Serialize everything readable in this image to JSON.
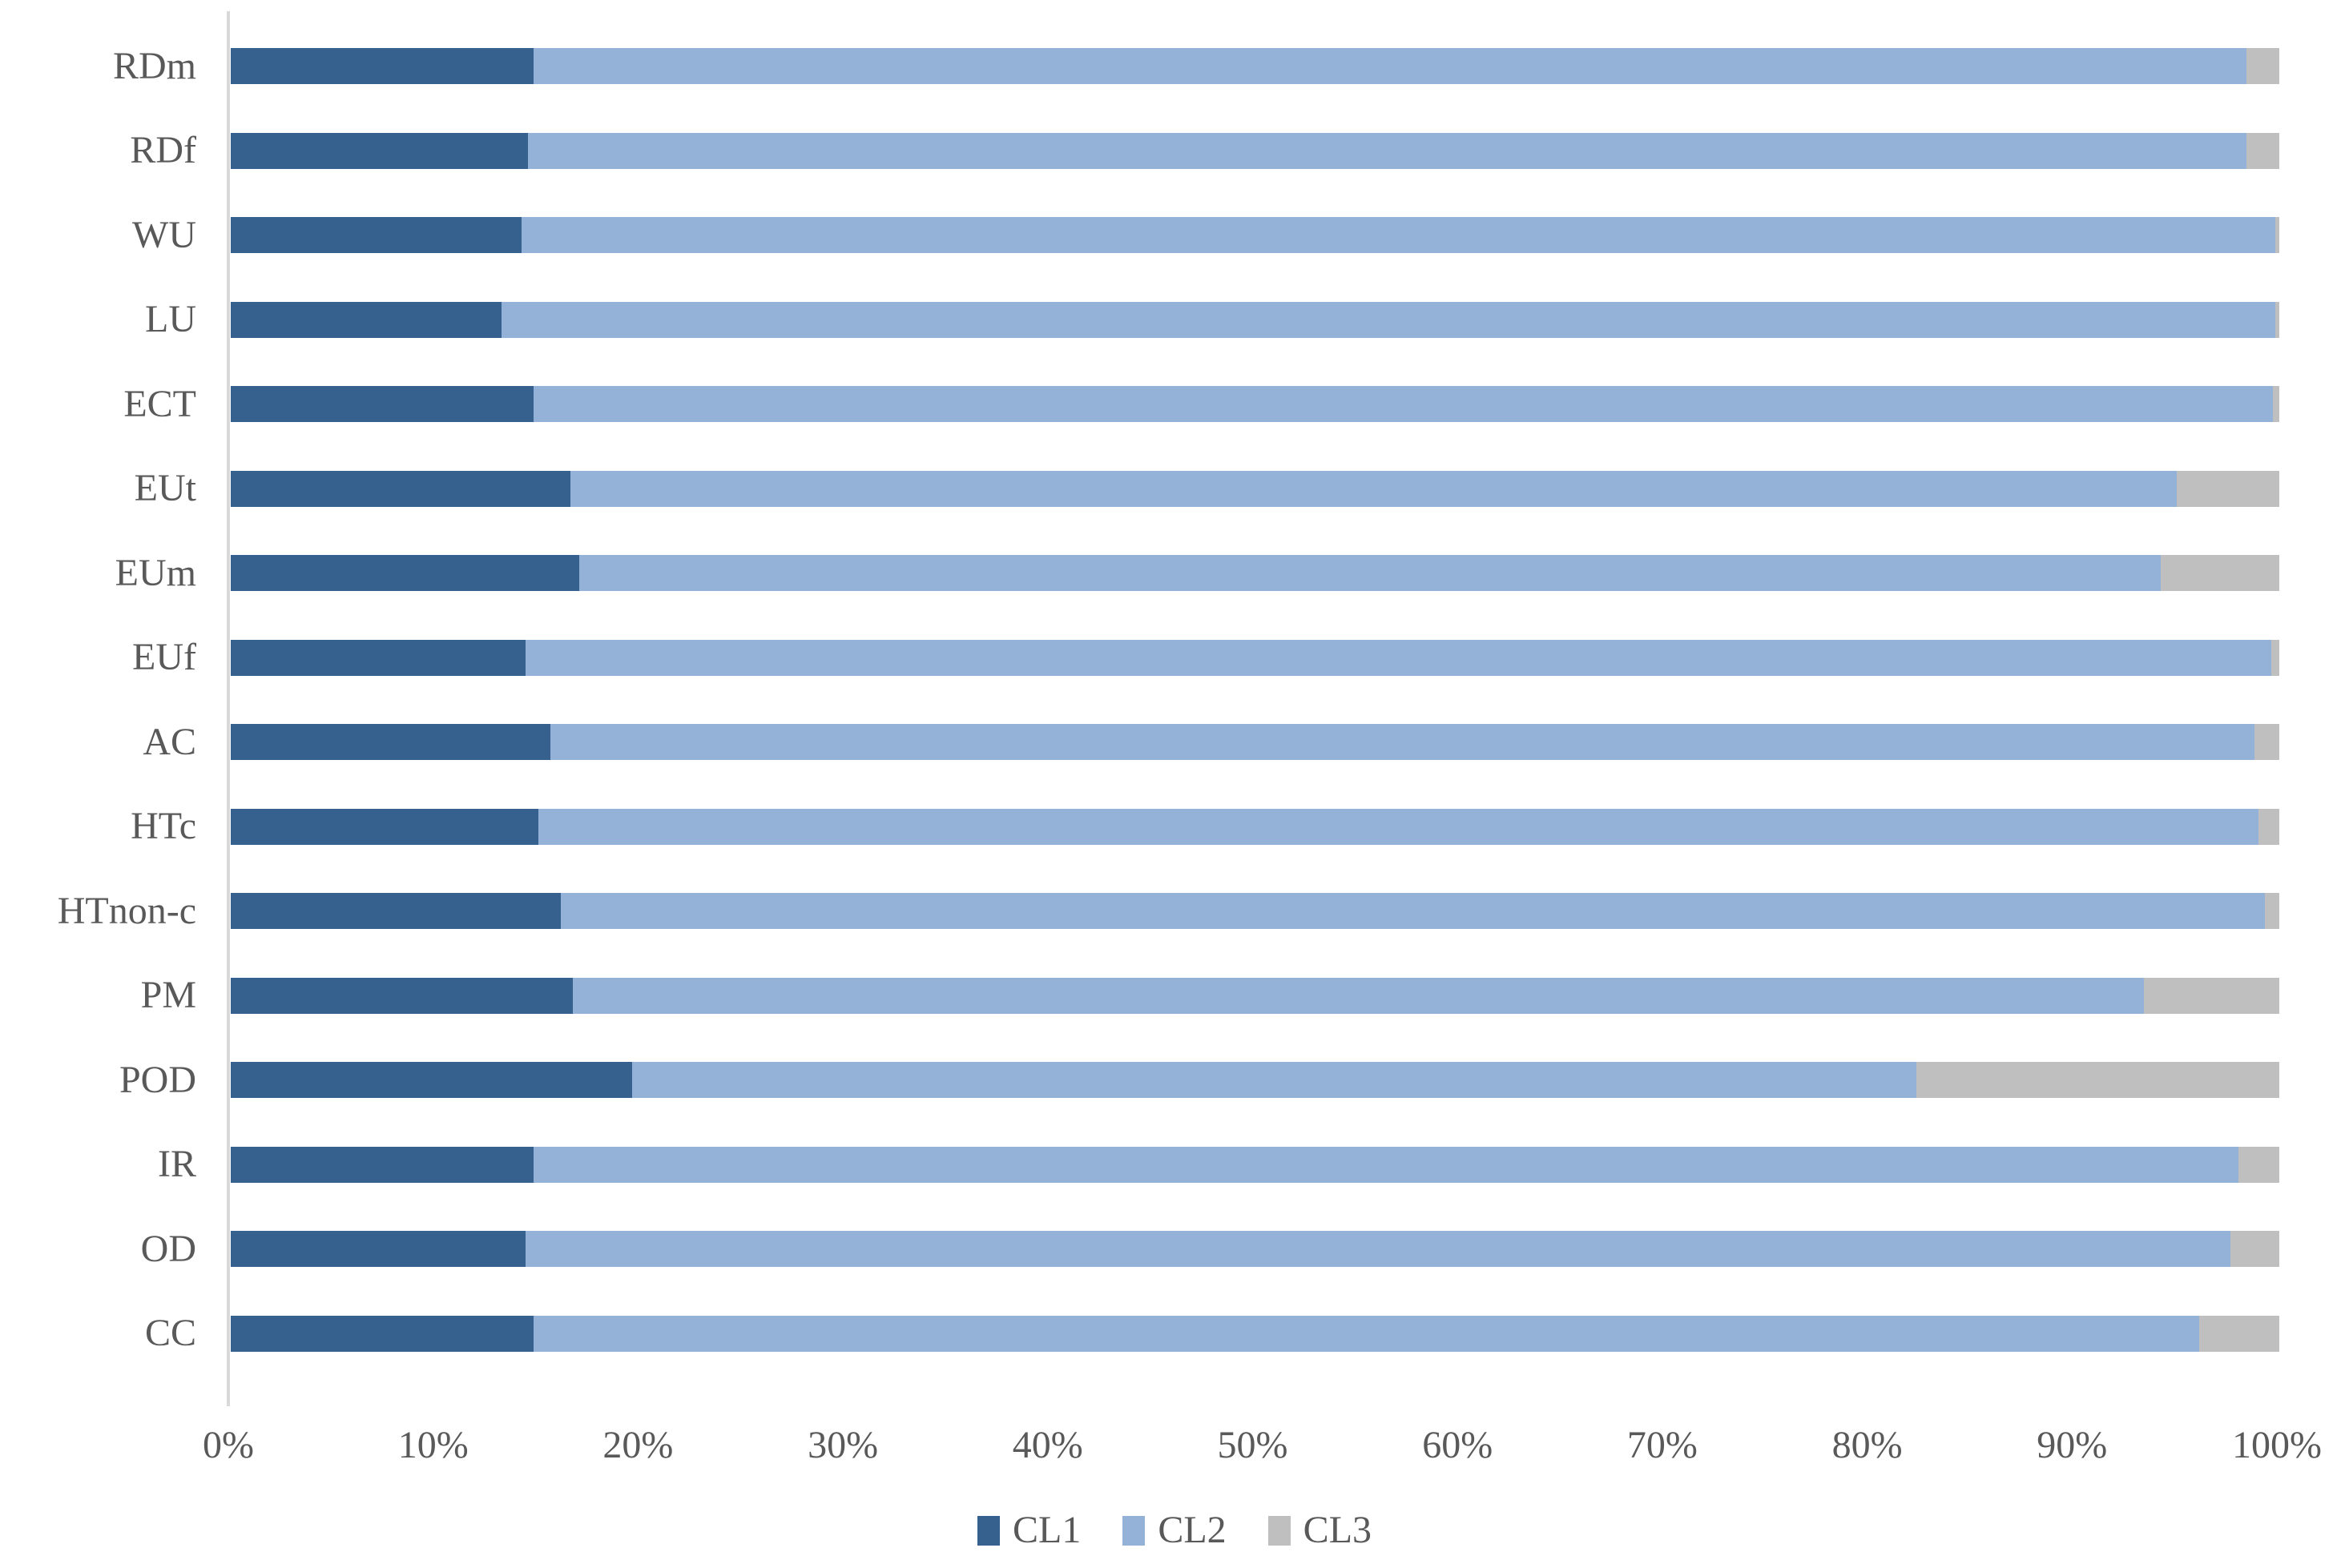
{
  "chart_data": {
    "type": "bar",
    "orientation": "horizontal",
    "stacked": true,
    "unit": "percent",
    "title": "",
    "xlabel": "",
    "ylabel": "",
    "xlim": [
      0,
      100
    ],
    "grid": false,
    "legend_position": "bottom",
    "categories": [
      "RDm",
      "RDf",
      "WU",
      "LU",
      "ECT",
      "EUt",
      "EUm",
      "EUf",
      "AC",
      "HTc",
      "HTnon-c",
      "PM",
      "POD",
      "IR",
      "OD",
      "CC"
    ],
    "series": [
      {
        "name": "CL1",
        "color": "#36618f",
        "values": [
          14.8,
          14.5,
          14.2,
          13.2,
          14.8,
          16.6,
          17.0,
          14.4,
          15.6,
          15.0,
          16.1,
          16.7,
          19.6,
          14.8,
          14.4,
          14.8
        ]
      },
      {
        "name": "CL2",
        "color": "#94b2d7",
        "values": [
          83.6,
          83.9,
          85.6,
          86.6,
          84.9,
          78.4,
          77.2,
          85.2,
          83.2,
          84.0,
          83.2,
          76.7,
          62.7,
          83.2,
          83.2,
          81.3
        ]
      },
      {
        "name": "CL3",
        "color": "#bfbfbf",
        "values": [
          1.6,
          1.6,
          0.2,
          0.2,
          0.3,
          5.0,
          5.8,
          0.4,
          1.2,
          1.0,
          0.7,
          6.6,
          17.7,
          2.0,
          2.4,
          3.9
        ]
      }
    ],
    "x_ticks": [
      "0%",
      "10%",
      "20%",
      "30%",
      "40%",
      "50%",
      "60%",
      "70%",
      "80%",
      "90%",
      "100%"
    ],
    "axis_color": "#d9d9d9",
    "text_color": "#595959"
  }
}
